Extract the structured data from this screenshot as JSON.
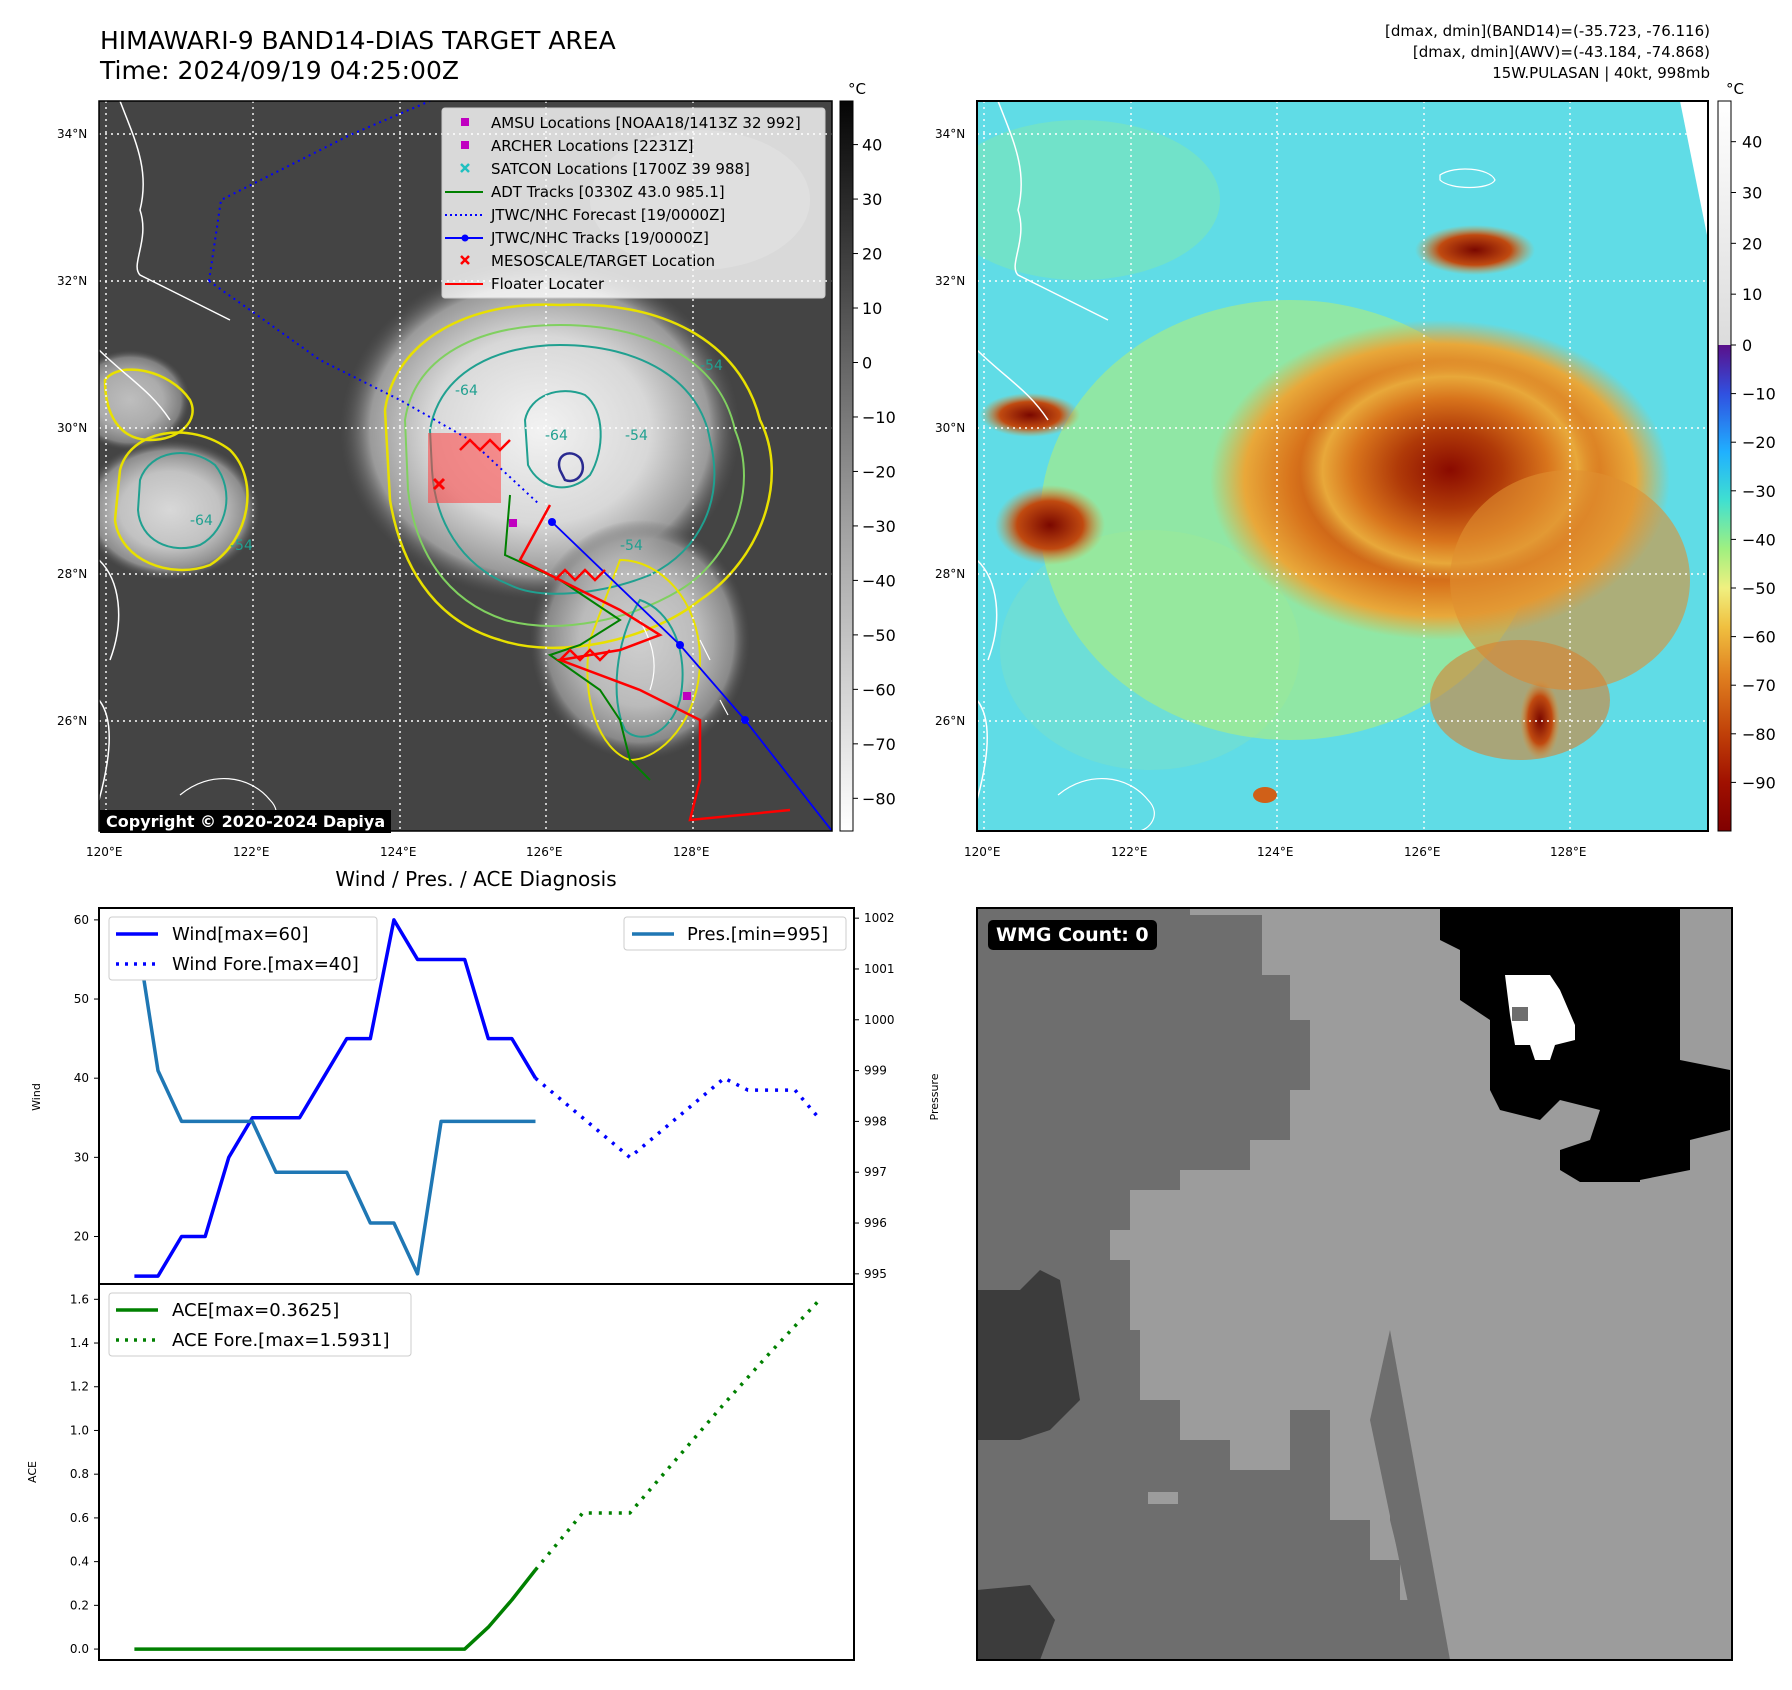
{
  "header": {
    "title": "HIMAWARI-9 BAND14-DIAS TARGET AREA",
    "time": "Time: 2024/09/19 04:25:00Z",
    "info_band14": "[dmax, dmin](BAND14)=(-35.723, -76.116)",
    "info_awv": "[dmax, dmin](AWV)=(-43.184, -74.868)",
    "info_storm": "15W.PULASAN | 40kt, 998mb"
  },
  "map_left": {
    "copyright": "Copyright © 2020-2024 Dapiya",
    "colorbar_unit": "°C",
    "colorbar_ticks": [
      "40",
      "30",
      "20",
      "10",
      "0",
      "−10",
      "−20",
      "−30",
      "−40",
      "−50",
      "−60",
      "−70",
      "−80"
    ],
    "lat_labels": [
      "34°N",
      "32°N",
      "30°N",
      "28°N",
      "26°N"
    ],
    "lon_labels": [
      "120°E",
      "122°E",
      "124°E",
      "126°E",
      "128°E"
    ],
    "legend": [
      {
        "label": "AMSU Locations [NOAA18/1413Z 32 992]",
        "color": "#c000c0",
        "marker": "square"
      },
      {
        "label": "ARCHER Locations [2231Z]",
        "color": "#c000c0",
        "marker": "square"
      },
      {
        "label": "SATCON Locations [1700Z 39 988]",
        "color": "#20c0c0",
        "marker": "x"
      },
      {
        "label": "ADT Tracks [0330Z 43.0 985.1]",
        "color": "#008000",
        "marker": "line"
      },
      {
        "label": "JTWC/NHC Forecast [19/0000Z]",
        "color": "#0000ff",
        "marker": "dotted"
      },
      {
        "label": "JTWC/NHC Tracks [19/0000Z]",
        "color": "#0000ff",
        "marker": "line-dot"
      },
      {
        "label": "MESOSCALE/TARGET Location",
        "color": "#ff0000",
        "marker": "x"
      },
      {
        "label": "Floater Locater",
        "color": "#ff0000",
        "marker": "line"
      }
    ],
    "contour_labels": [
      "-54",
      "-64",
      "-54",
      "-64",
      "-54",
      "-54",
      "-64"
    ]
  },
  "map_right": {
    "colorbar_unit": "°C",
    "colorbar_ticks": [
      "40",
      "30",
      "20",
      "10",
      "0",
      "−10",
      "−20",
      "−30",
      "−40",
      "−50",
      "−60",
      "−70",
      "−80",
      "−90"
    ],
    "lat_labels": [
      "34°N",
      "32°N",
      "30°N",
      "28°N",
      "26°N"
    ],
    "lon_labels": [
      "120°E",
      "122°E",
      "124°E",
      "126°E",
      "128°E"
    ]
  },
  "wmg": {
    "label": "WMG Count: 0"
  },
  "chart_data": [
    {
      "type": "line",
      "title": "Wind / Pres. / ACE Diagnosis",
      "ylabel": "Wind",
      "y2label": "Pressure",
      "ylim": [
        14,
        61.5
      ],
      "yticks": [
        20,
        30,
        40,
        50,
        60
      ],
      "y2lim": [
        994.8,
        1002.2
      ],
      "y2ticks": [
        995,
        996,
        997,
        998,
        999,
        1000,
        1001,
        1002
      ],
      "series": [
        {
          "name": "Wind[max=60]",
          "color": "#0000ff",
          "style": "solid",
          "axis": "left",
          "x": [
            0,
            1,
            2,
            3,
            4,
            5,
            6,
            7,
            8,
            9,
            10,
            11,
            12,
            13,
            14,
            15,
            16,
            17
          ],
          "values": [
            15,
            15,
            20,
            20,
            30,
            35,
            35,
            35,
            40,
            45,
            45,
            60,
            55,
            55,
            55,
            45,
            45,
            40
          ]
        },
        {
          "name": "Wind Fore.[max=40]",
          "color": "#0000ff",
          "style": "dotted",
          "axis": "left",
          "x": [
            17,
            19,
            21,
            23,
            25,
            26,
            27,
            28,
            29
          ],
          "values": [
            40,
            35,
            30,
            35,
            40,
            38.5,
            38.5,
            38.5,
            35
          ]
        },
        {
          "name": "Pres.[min=995]",
          "color": "#1f77b4",
          "style": "solid",
          "axis": "right",
          "x": [
            0,
            1,
            2,
            3,
            4,
            5,
            6,
            7,
            8,
            9,
            10,
            11,
            12,
            13,
            14,
            15,
            16,
            17
          ],
          "values": [
            1002,
            999,
            998,
            998,
            998,
            998,
            997,
            997,
            997,
            997,
            996,
            996,
            995,
            998,
            998,
            998,
            998,
            998
          ]
        }
      ]
    },
    {
      "type": "line",
      "ylabel": "ACE",
      "ylim": [
        -0.05,
        1.67
      ],
      "yticks": [
        "0.0",
        "0.2",
        "0.4",
        "0.6",
        "0.8",
        "1.0",
        "1.2",
        "1.4",
        "1.6"
      ],
      "series": [
        {
          "name": "ACE[max=0.3625]",
          "color": "#008000",
          "style": "solid",
          "x": [
            0,
            1,
            2,
            3,
            4,
            5,
            6,
            7,
            8,
            9,
            10,
            11,
            12,
            13,
            14,
            15,
            16,
            17
          ],
          "values": [
            0,
            0,
            0,
            0,
            0,
            0,
            0,
            0,
            0,
            0,
            0,
            0,
            0,
            0,
            0,
            0.1,
            0.225,
            0.3625
          ]
        },
        {
          "name": "ACE Fore.[max=1.5931]",
          "color": "#008000",
          "style": "dotted",
          "x": [
            17,
            19,
            21,
            23,
            25,
            27,
            29
          ],
          "values": [
            0.3625,
            0.6225,
            0.6225,
            0.8725,
            1.1225,
            1.3625,
            1.5931
          ]
        }
      ]
    }
  ]
}
